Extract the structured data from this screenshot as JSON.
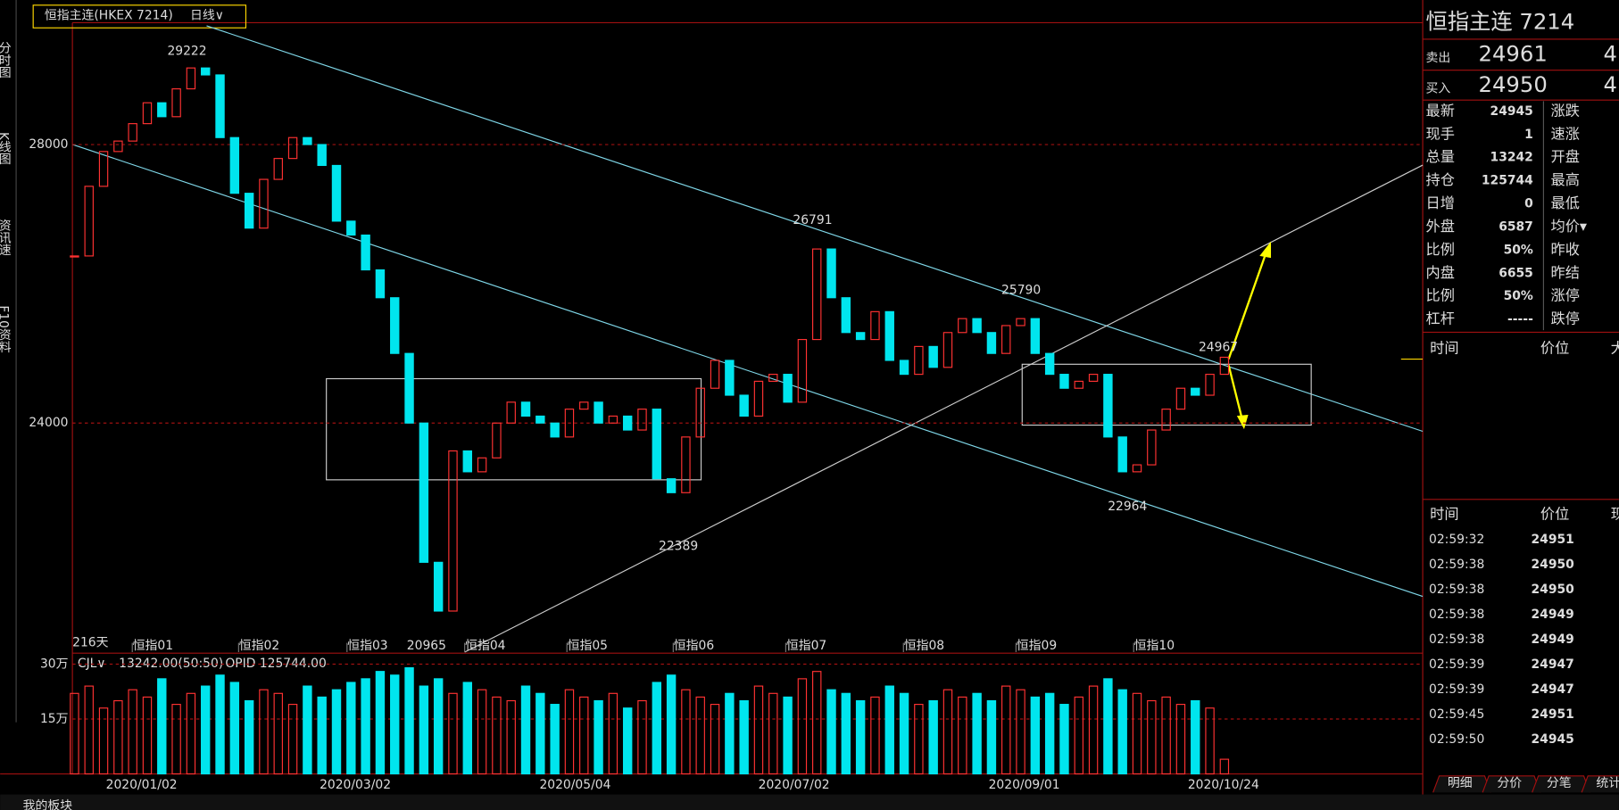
{
  "header": {
    "instrument": "恒指主连(HKEX 7214)",
    "period": "日线∨"
  },
  "sidebar": {
    "tabs": [
      "分时图",
      "K线图",
      "资讯速",
      "F10资料"
    ]
  },
  "chart_data": [
    {
      "type": "candlestick",
      "close": [
        26400,
        27400,
        27900,
        28050,
        28300,
        28600,
        28400,
        28800,
        29100,
        29000,
        28100,
        27300,
        26800,
        27500,
        27800,
        28100,
        28000,
        27700,
        26900,
        26700,
        26200,
        25800,
        25000,
        24000,
        22000,
        21300,
        23600,
        23300,
        23500,
        24000,
        24300,
        24100,
        24000,
        23800,
        24200,
        24300,
        24000,
        24100,
        23900,
        24200,
        23200,
        23000,
        23800,
        24500,
        24900,
        24400,
        24100,
        24600,
        24700,
        24300,
        25200,
        26500,
        25800,
        25300,
        25200,
        25600,
        24900,
        24700,
        25100,
        24800,
        25300,
        25500,
        25300,
        25000,
        25400,
        25500,
        25000,
        24700,
        24500,
        24600,
        24700,
        23800,
        23300,
        23400,
        23900,
        24200,
        24500,
        24400,
        24700,
        24945
      ],
      "up_color": "#ff3232",
      "down_color": "#00e5ee",
      "ylim": [
        20710,
        29750
      ],
      "yticks": [
        24000,
        28000
      ],
      "grid": true,
      "peak_labels": [
        29222,
        26791,
        25790,
        24967,
        22389,
        20965,
        22964
      ],
      "peak_colors": [
        "#ff3232",
        "#ff3232",
        "#ff3232",
        "#ff3232",
        "#00e5ee",
        "#00e5ee",
        "#00e5ee"
      ],
      "month_labels": [
        "恒指01",
        "恒指02",
        "恒指03",
        "恒指04",
        "恒指05",
        "恒指06",
        "恒指07",
        "恒指08",
        "恒指09",
        "恒指10"
      ],
      "day_count": "216天"
    },
    {
      "type": "bar",
      "header": {
        "name": "CJL∨",
        "volume": "13242.00(50:50)",
        "opid": "OPID 125744.00"
      },
      "values": [
        22,
        24,
        18,
        20,
        23,
        21,
        26,
        19,
        22,
        24,
        27,
        25,
        20,
        23,
        22,
        19,
        24,
        21,
        23,
        25,
        26,
        28,
        27,
        29,
        24,
        26,
        22,
        25,
        23,
        21,
        20,
        24,
        22,
        19,
        23,
        21,
        20,
        22,
        18,
        20,
        25,
        27,
        23,
        21,
        19,
        22,
        20,
        24,
        22,
        21,
        26,
        28,
        23,
        22,
        20,
        21,
        24,
        22,
        19,
        20,
        23,
        21,
        22,
        20,
        24,
        23,
        21,
        22,
        19,
        21,
        24,
        26,
        23,
        22,
        20,
        21,
        19,
        20,
        18,
        4
      ],
      "ylim": [
        0,
        33
      ],
      "yticks": [
        {
          "value": 30,
          "label": "30万"
        },
        {
          "value": 15,
          "label": "15万"
        }
      ],
      "grid": true,
      "date_labels": [
        "2020/01/02",
        "2020/03/02",
        "2020/05/04",
        "2020/07/02",
        "2020/09/01",
        "2020/10/24"
      ]
    }
  ],
  "quote": {
    "title": "恒指主连  7214",
    "sell": {
      "label": "卖出",
      "price": 24961,
      "qty": 4
    },
    "buy": {
      "label": "买入",
      "price": 24950,
      "qty": 4
    },
    "rows": [
      {
        "label": "最新",
        "value": 24945,
        "label2": "涨跌"
      },
      {
        "label": "现手",
        "value": 1,
        "label2": "速涨"
      },
      {
        "label": "总量",
        "value": 13242,
        "label2": "开盘"
      },
      {
        "label": "持仓",
        "value": 125744,
        "label2": "最高"
      },
      {
        "label": "日增",
        "value": 0,
        "label2": "最低"
      },
      {
        "label": "外盘",
        "value": 6587,
        "label2": "均价▾"
      },
      {
        "label": "比例",
        "value": "50%",
        "label2": "昨收"
      },
      {
        "label": "内盘",
        "value": 6655,
        "label2": "昨结"
      },
      {
        "label": "比例",
        "value": "50%",
        "label2": "涨停"
      },
      {
        "label": "杠杆",
        "value": "-----",
        "label2": "跌停"
      }
    ],
    "head1": [
      "时间",
      "价位",
      "大"
    ],
    "head2": [
      "时间",
      "价位",
      "现"
    ],
    "trades": [
      {
        "time": "02:59:32",
        "price": 24951
      },
      {
        "time": "02:59:38",
        "price": 24950
      },
      {
        "time": "02:59:38",
        "price": 24950
      },
      {
        "time": "02:59:38",
        "price": 24949
      },
      {
        "time": "02:59:38",
        "price": 24949
      },
      {
        "time": "02:59:39",
        "price": 24947
      },
      {
        "time": "02:59:39",
        "price": 24947
      },
      {
        "time": "02:59:45",
        "price": 24951
      },
      {
        "time": "02:59:50",
        "price": 24945
      }
    ],
    "tabs": [
      "明细",
      "分价",
      "分笔",
      "统计"
    ]
  },
  "footer": {
    "text": "我的板块"
  }
}
